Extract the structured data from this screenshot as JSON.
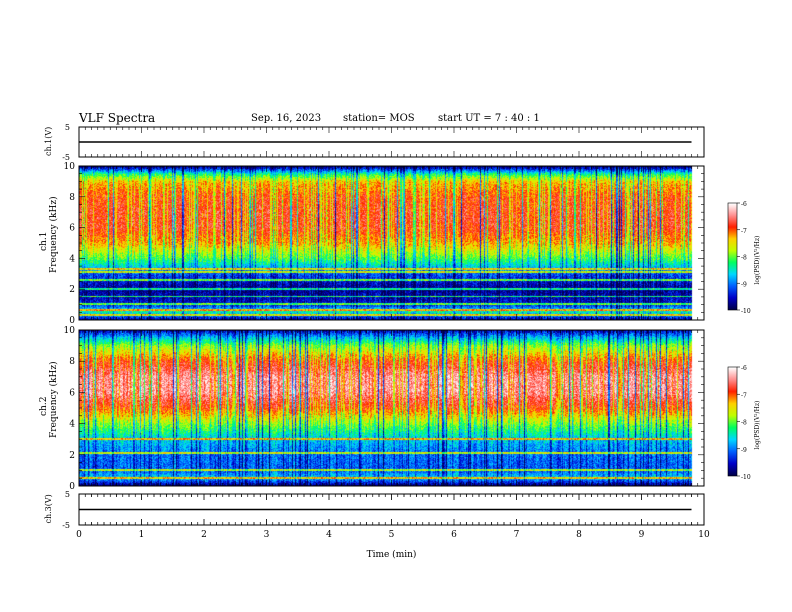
{
  "header": {
    "title": "VLF Spectra",
    "date": "Sep. 16, 2023",
    "station": "station= MOS",
    "start": "start  UT =   7 : 40 : 1"
  },
  "axes": {
    "xlabel": "Time  (min)",
    "ch1_wave_label": "ch.1(V)",
    "ch3_wave_label": "ch.3(V)",
    "ch1_freq_label": "ch.1",
    "ch2_freq_label": "ch.2",
    "freq_label": "Frequency  (kHz)",
    "colorbar_label": "log(PSD)(V²/Hz)"
  },
  "colors": {
    "colormap": [
      "#00004a",
      "#0000c8",
      "#0060ff",
      "#00d8ff",
      "#00ff60",
      "#c0ff00",
      "#ffd000",
      "#ff2000",
      "#ff9090",
      "#ffffff"
    ]
  },
  "chart_data": [
    {
      "type": "line",
      "name": "ch1-waveform",
      "ylabel": "ch.1(V)",
      "x": [
        0,
        2,
        4,
        6,
        8,
        9.8
      ],
      "y": [
        0,
        0,
        0,
        0,
        0,
        0
      ],
      "xlim": [
        0,
        10
      ],
      "ylim": [
        -5,
        5
      ],
      "yticks": [
        "5",
        "-5"
      ]
    },
    {
      "type": "heatmap",
      "name": "ch1-spectrogram",
      "ylabel": "Frequency  (kHz)",
      "channel": "ch.1",
      "xlim": [
        0,
        10
      ],
      "ylim": [
        0,
        10
      ],
      "data_end_min": 9.8,
      "xticks": [
        "0",
        "1",
        "2",
        "3",
        "4",
        "5",
        "6",
        "7",
        "8",
        "9",
        "10"
      ],
      "yticks": [
        "0",
        "2",
        "4",
        "6",
        "8",
        "10"
      ],
      "colorbar": {
        "min": -10,
        "max": -6,
        "ticks": [
          "-6",
          "-7",
          "-8",
          "-9",
          "-10"
        ],
        "label": "log(PSD)(V²/Hz)"
      },
      "band_profile": [
        {
          "f": 0.0,
          "v": -9.6
        },
        {
          "f": 0.5,
          "v": -8.3
        },
        {
          "f": 1.0,
          "v": -9.4
        },
        {
          "f": 2.0,
          "v": -9.7
        },
        {
          "f": 3.0,
          "v": -9.1
        },
        {
          "f": 4.0,
          "v": -8.0
        },
        {
          "f": 5.0,
          "v": -7.2
        },
        {
          "f": 6.0,
          "v": -6.8
        },
        {
          "f": 7.0,
          "v": -6.8
        },
        {
          "f": 8.0,
          "v": -6.9
        },
        {
          "f": 9.0,
          "v": -7.3
        },
        {
          "f": 9.5,
          "v": -8.2
        },
        {
          "f": 10.0,
          "v": -9.8
        }
      ],
      "lines_khz": [
        0.3,
        0.6,
        1.0,
        1.5,
        2.0,
        2.6,
        3.1,
        3.3
      ]
    },
    {
      "type": "heatmap",
      "name": "ch2-spectrogram",
      "ylabel": "Frequency  (kHz)",
      "channel": "ch.2",
      "xlim": [
        0,
        10
      ],
      "ylim": [
        0,
        10
      ],
      "data_end_min": 9.8,
      "xticks": [
        "0",
        "1",
        "2",
        "3",
        "4",
        "5",
        "6",
        "7",
        "8",
        "9",
        "10"
      ],
      "yticks": [
        "0",
        "2",
        "4",
        "6",
        "8",
        "10"
      ],
      "colorbar": {
        "min": -10,
        "max": -6,
        "ticks": [
          "-6",
          "-7",
          "-8",
          "-9",
          "-10"
        ],
        "label": "log(PSD)(V²/Hz)"
      },
      "band_profile": [
        {
          "f": 0.0,
          "v": -9.8
        },
        {
          "f": 0.5,
          "v": -8.6
        },
        {
          "f": 1.0,
          "v": -9.1
        },
        {
          "f": 2.0,
          "v": -9.0
        },
        {
          "f": 3.0,
          "v": -8.6
        },
        {
          "f": 4.0,
          "v": -7.8
        },
        {
          "f": 5.0,
          "v": -6.9
        },
        {
          "f": 6.0,
          "v": -6.4
        },
        {
          "f": 7.0,
          "v": -6.4
        },
        {
          "f": 8.0,
          "v": -6.9
        },
        {
          "f": 9.0,
          "v": -7.8
        },
        {
          "f": 9.5,
          "v": -8.6
        },
        {
          "f": 10.0,
          "v": -9.5
        }
      ],
      "lines_khz": [
        0.5,
        1.0,
        2.1,
        3.0
      ]
    },
    {
      "type": "line",
      "name": "ch3-waveform",
      "ylabel": "ch.3(V)",
      "x": [
        0,
        2,
        4,
        6,
        8,
        9.8
      ],
      "y": [
        0,
        0,
        0,
        0,
        0,
        0
      ],
      "xlim": [
        0,
        10
      ],
      "ylim": [
        -5,
        5
      ],
      "yticks": [
        "5",
        "-5"
      ],
      "xlabel": "Time  (min)"
    }
  ]
}
